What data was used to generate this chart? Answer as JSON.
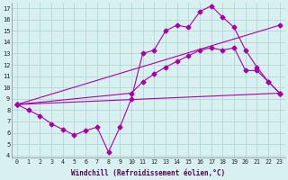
{
  "xlabel": "Windchill (Refroidissement éolien,°C)",
  "background_color": "#d8f0f0",
  "grid_color": "#b0d8d8",
  "line_color": "#aa00aa",
  "xlim": [
    -0.5,
    23.5
  ],
  "ylim": [
    3.8,
    17.5
  ],
  "xticks": [
    0,
    1,
    2,
    3,
    4,
    5,
    6,
    7,
    8,
    9,
    10,
    11,
    12,
    13,
    14,
    15,
    16,
    17,
    18,
    19,
    20,
    21,
    22,
    23
  ],
  "yticks": [
    4,
    5,
    6,
    7,
    8,
    9,
    10,
    11,
    12,
    13,
    14,
    15,
    16,
    17
  ],
  "lines": [
    {
      "x": [
        0,
        23
      ],
      "y": [
        8.5,
        9.5
      ],
      "marker": "D",
      "markersize": 2.5,
      "lw": 0.8
    },
    {
      "x": [
        0,
        1,
        2,
        3,
        4,
        5,
        6,
        7,
        8,
        9,
        10,
        11,
        12,
        13,
        14,
        15,
        16,
        17,
        18,
        19,
        20,
        21,
        22,
        23
      ],
      "y": [
        8.5,
        8.0,
        7.5,
        6.8,
        6.3,
        5.8,
        6.2,
        6.5,
        4.3,
        6.5,
        9.0,
        13.0,
        13.3,
        15.0,
        15.5,
        15.3,
        16.7,
        17.2,
        16.2,
        15.3,
        13.3,
        11.8,
        10.5,
        9.5
      ],
      "marker": "D",
      "markersize": 2.5,
      "lw": 0.8
    },
    {
      "x": [
        0,
        10,
        11,
        12,
        13,
        14,
        15,
        16,
        17,
        18,
        19,
        20,
        21,
        22,
        23
      ],
      "y": [
        8.5,
        9.5,
        10.5,
        11.2,
        11.8,
        12.3,
        12.8,
        13.3,
        13.5,
        13.3,
        13.5,
        11.5,
        11.5,
        10.5,
        9.5
      ],
      "marker": "D",
      "markersize": 2.5,
      "lw": 0.8
    },
    {
      "x": [
        0,
        23
      ],
      "y": [
        8.5,
        15.5
      ],
      "marker": "D",
      "markersize": 2.5,
      "lw": 0.8
    }
  ]
}
